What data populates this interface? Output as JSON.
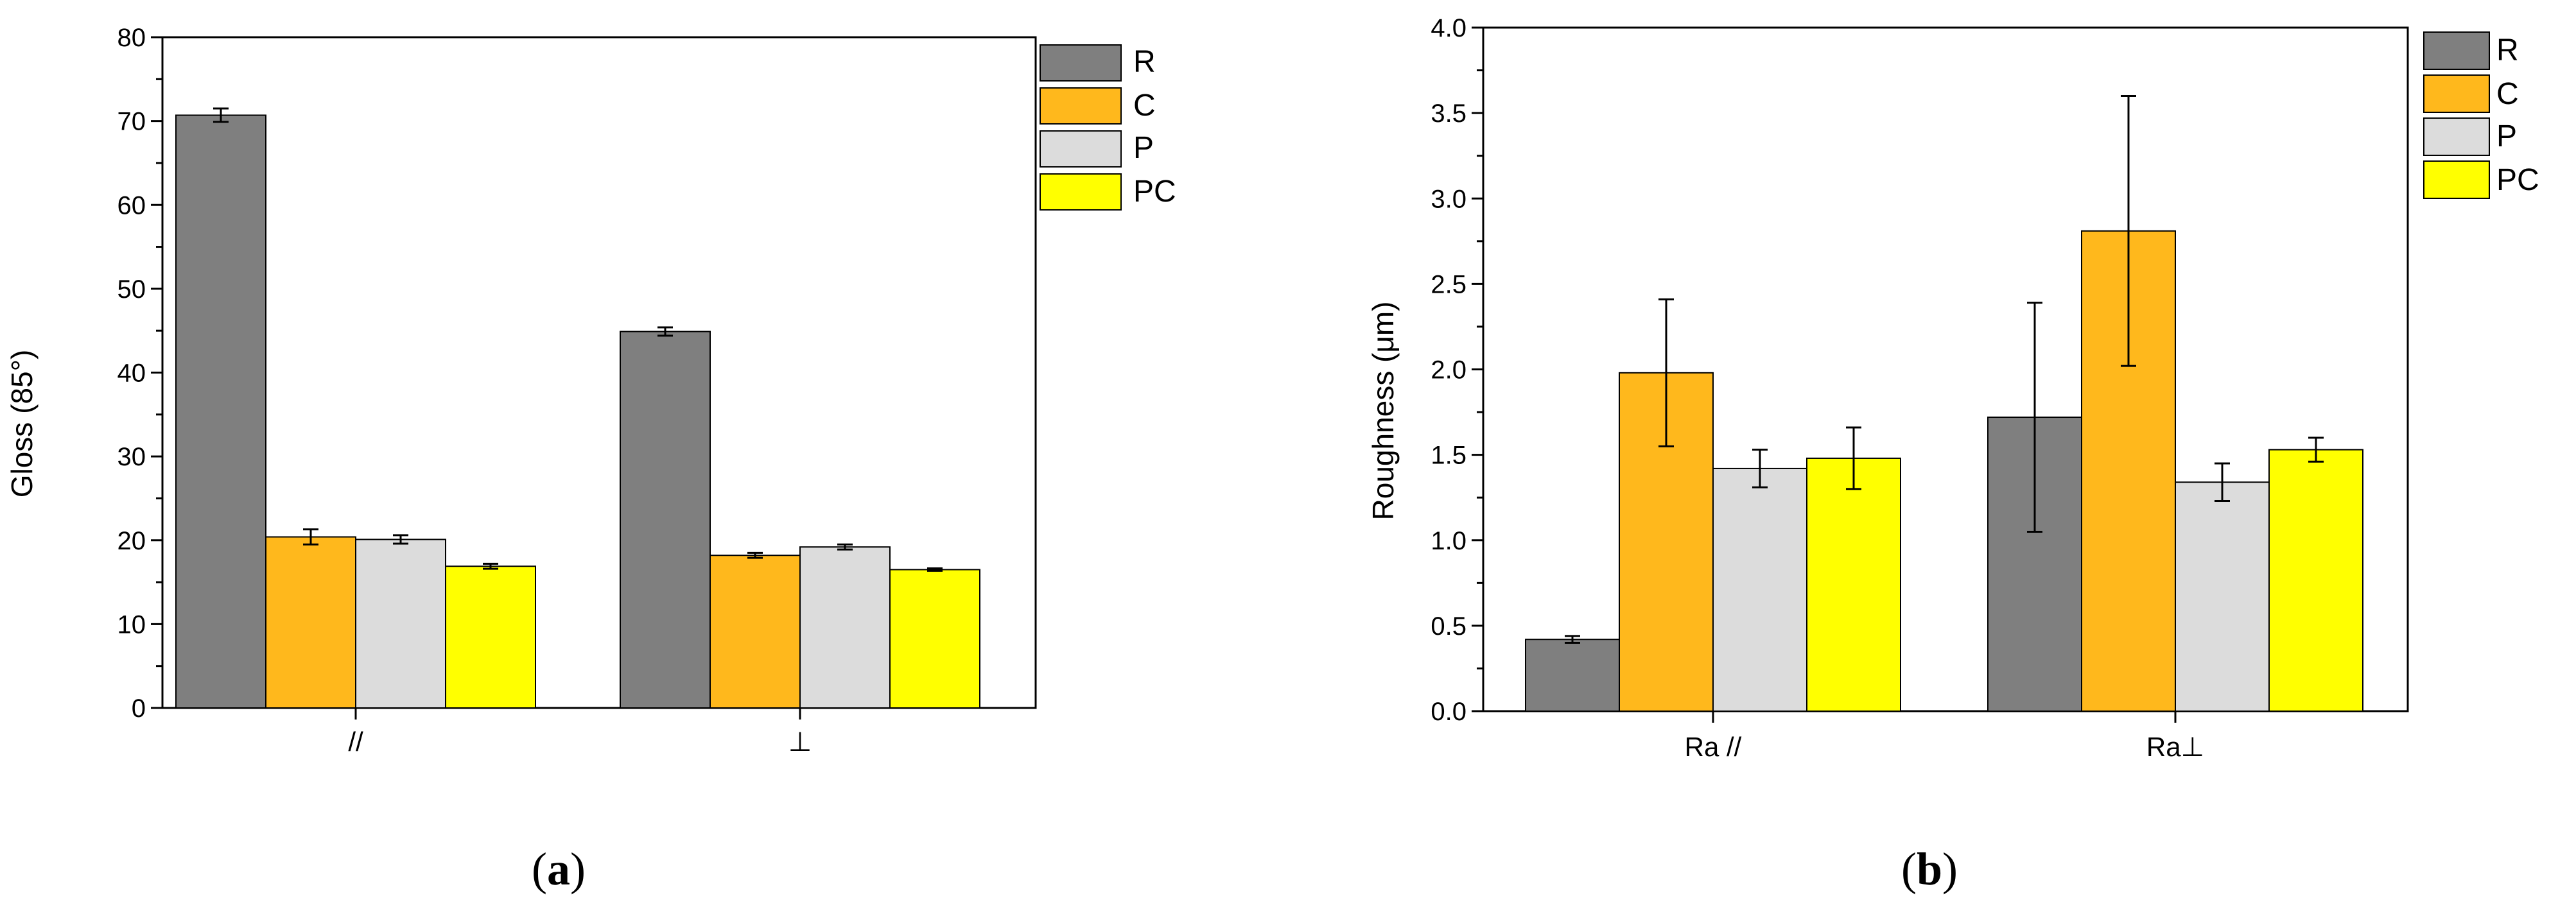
{
  "colors": {
    "R": "#7f7f7f",
    "C": "#ffb81c",
    "P": "#dcdcdc",
    "PC": "#ffff00",
    "axis": "#000000",
    "background": "#ffffff"
  },
  "chart_data": [
    {
      "type": "bar",
      "panel_label": "a",
      "categories": [
        "//",
        "⊥"
      ],
      "series": [
        {
          "name": "R",
          "values": [
            70.7,
            44.9
          ],
          "errors": [
            0.8,
            0.5
          ]
        },
        {
          "name": "C",
          "values": [
            20.4,
            18.2
          ],
          "errors": [
            0.9,
            0.3
          ]
        },
        {
          "name": "P",
          "values": [
            20.1,
            19.2
          ],
          "errors": [
            0.5,
            0.3
          ]
        },
        {
          "name": "PC",
          "values": [
            16.9,
            16.5
          ],
          "errors": [
            0.3,
            0.15
          ]
        }
      ],
      "title": "",
      "xlabel": "",
      "ylabel": "Gloss (85°)",
      "ylim": [
        0,
        80
      ],
      "yticks": [
        0,
        10,
        20,
        30,
        40,
        50,
        60,
        70,
        80
      ],
      "ytick_labels": [
        "0",
        "10",
        "20",
        "30",
        "40",
        "50",
        "60",
        "70",
        "80"
      ],
      "legend": [
        "R",
        "C",
        "P",
        "PC"
      ],
      "legend_position": "top-right",
      "grid": false
    },
    {
      "type": "bar",
      "panel_label": "b",
      "categories": [
        "Ra //",
        "Ra⊥"
      ],
      "series": [
        {
          "name": "R",
          "values": [
            0.42,
            1.72
          ],
          "errors": [
            0.02,
            0.67
          ]
        },
        {
          "name": "C",
          "values": [
            1.98,
            2.81
          ],
          "errors": [
            0.43,
            0.79
          ]
        },
        {
          "name": "P",
          "values": [
            1.42,
            1.34
          ],
          "errors": [
            0.11,
            0.11
          ]
        },
        {
          "name": "PC",
          "values": [
            1.48,
            1.53
          ],
          "errors": [
            0.18,
            0.07
          ]
        }
      ],
      "title": "",
      "xlabel": "",
      "ylabel": "Roughness (μm)",
      "ylim": [
        0,
        4.0
      ],
      "yticks": [
        0,
        0.5,
        1,
        1.5,
        2,
        2.5,
        3,
        3.5,
        4
      ],
      "ytick_labels": [
        "0.0",
        "0.5",
        "1.0",
        "1.5",
        "2.0",
        "2.5",
        "3.0",
        "3.5",
        "4.0"
      ],
      "legend": [
        "R",
        "C",
        "P",
        "PC"
      ],
      "legend_position": "top-right",
      "grid": false
    }
  ]
}
